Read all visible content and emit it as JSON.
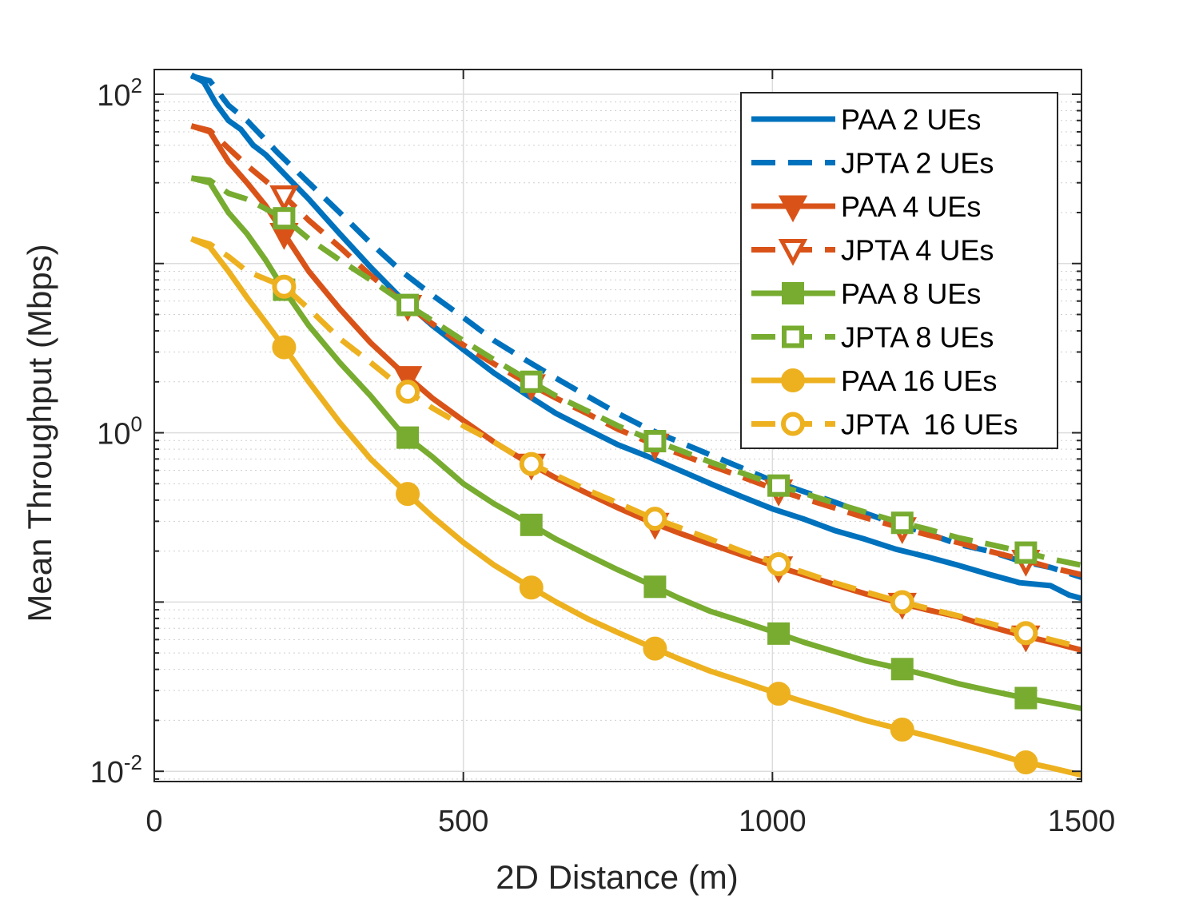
{
  "chart_data": {
    "type": "line",
    "xlabel": "2D Distance (m)",
    "ylabel": "Mean Throughput (Mbps)",
    "yscale": "log",
    "xlim": [
      0,
      1500
    ],
    "ylim": [
      0.0087,
      140
    ],
    "x_ticks": [
      0,
      500,
      1000,
      1500
    ],
    "y_ticks": [
      {
        "value": 0.01,
        "base": "10",
        "exp": "-2"
      },
      {
        "value": 1,
        "base": "10",
        "exp": "0"
      },
      {
        "value": 100,
        "base": "10",
        "exp": "2"
      }
    ],
    "grid": true,
    "legend_position": "top-right",
    "series": [
      {
        "name": "PAA 2 UEs",
        "color": "#0072BD",
        "dash": "solid",
        "marker": "none",
        "fill": "none",
        "x": [
          60,
          80,
          100,
          120,
          140,
          160,
          180,
          200,
          250,
          300,
          350,
          400,
          450,
          500,
          550,
          600,
          650,
          700,
          750,
          800,
          850,
          900,
          950,
          1000,
          1050,
          1100,
          1150,
          1200,
          1250,
          1300,
          1350,
          1400,
          1450,
          1480,
          1500
        ],
        "y": [
          130,
          118,
          88,
          70,
          62,
          50,
          44,
          37,
          24,
          15,
          9.5,
          6.2,
          4.3,
          3.1,
          2.25,
          1.7,
          1.3,
          1.05,
          0.85,
          0.72,
          0.6,
          0.5,
          0.42,
          0.355,
          0.31,
          0.265,
          0.235,
          0.205,
          0.185,
          0.165,
          0.146,
          0.13,
          0.125,
          0.11,
          0.105
        ]
      },
      {
        "name": "JPTA 2 UEs",
        "color": "#0072BD",
        "dash": "dashed",
        "marker": "none",
        "fill": "none",
        "x": [
          60,
          90,
          120,
          150,
          200,
          250,
          300,
          350,
          400,
          450,
          500,
          550,
          600,
          650,
          700,
          750,
          800,
          850,
          900,
          950,
          1000,
          1050,
          1100,
          1150,
          1200,
          1250,
          1300,
          1350,
          1400,
          1450,
          1500
        ],
        "y": [
          128,
          120,
          86,
          70,
          45,
          30,
          20,
          13.2,
          9.0,
          6.5,
          4.8,
          3.5,
          2.7,
          2.1,
          1.65,
          1.3,
          1.05,
          0.88,
          0.74,
          0.62,
          0.52,
          0.45,
          0.39,
          0.335,
          0.29,
          0.255,
          0.22,
          0.2,
          0.175,
          0.16,
          0.14
        ]
      },
      {
        "name": "PAA 4 UEs",
        "color": "#D95319",
        "dash": "solid",
        "marker": "triangle-down",
        "fill": "filled",
        "x": [
          60,
          90,
          120,
          150,
          180,
          210,
          250,
          300,
          350,
          400,
          450,
          500,
          550,
          600,
          650,
          700,
          750,
          800,
          850,
          900,
          950,
          1000,
          1050,
          1100,
          1150,
          1200,
          1250,
          1300,
          1350,
          1400,
          1450,
          1500
        ],
        "y": [
          65,
          60,
          40,
          30,
          22,
          15,
          9,
          5.4,
          3.4,
          2.3,
          1.6,
          1.18,
          0.88,
          0.68,
          0.54,
          0.44,
          0.36,
          0.3,
          0.255,
          0.22,
          0.19,
          0.165,
          0.145,
          0.127,
          0.112,
          0.1,
          0.09,
          0.082,
          0.072,
          0.064,
          0.058,
          0.052
        ]
      },
      {
        "name": "JPTA 4 UEs",
        "color": "#D95319",
        "dash": "dashed",
        "marker": "triangle-down",
        "fill": "open",
        "x": [
          60,
          90,
          120,
          150,
          210,
          250,
          300,
          350,
          400,
          450,
          500,
          550,
          600,
          650,
          700,
          750,
          800,
          850,
          900,
          950,
          1000,
          1050,
          1100,
          1150,
          1200,
          1250,
          1300,
          1350,
          1400,
          1450,
          1500
        ],
        "y": [
          65,
          61,
          48,
          38,
          25,
          18,
          12.5,
          8.5,
          6.0,
          4.4,
          3.3,
          2.55,
          2.0,
          1.6,
          1.3,
          1.05,
          0.88,
          0.75,
          0.64,
          0.55,
          0.47,
          0.41,
          0.36,
          0.315,
          0.28,
          0.25,
          0.225,
          0.2,
          0.18,
          0.16,
          0.145
        ]
      },
      {
        "name": "PAA 8 UEs",
        "color": "#77AC30",
        "dash": "solid",
        "marker": "square",
        "fill": "filled",
        "x": [
          60,
          90,
          120,
          150,
          180,
          210,
          250,
          300,
          350,
          400,
          450,
          500,
          550,
          600,
          650,
          700,
          750,
          800,
          850,
          900,
          950,
          1000,
          1050,
          1100,
          1150,
          1200,
          1250,
          1300,
          1350,
          1400,
          1450,
          1500
        ],
        "y": [
          32,
          30,
          20,
          15,
          10.5,
          7.0,
          4.3,
          2.6,
          1.65,
          1.0,
          0.72,
          0.5,
          0.38,
          0.3,
          0.235,
          0.19,
          0.155,
          0.128,
          0.105,
          0.088,
          0.077,
          0.067,
          0.058,
          0.051,
          0.045,
          0.041,
          0.037,
          0.033,
          0.03,
          0.0275,
          0.0255,
          0.0235
        ]
      },
      {
        "name": "JPTA 8 UEs",
        "color": "#77AC30",
        "dash": "dashed",
        "marker": "square",
        "fill": "open",
        "x": [
          60,
          90,
          120,
          150,
          210,
          250,
          300,
          350,
          400,
          450,
          500,
          550,
          600,
          650,
          700,
          750,
          800,
          850,
          900,
          950,
          1000,
          1050,
          1100,
          1150,
          1200,
          1250,
          1300,
          1350,
          1400,
          1450,
          1500
        ],
        "y": [
          32,
          31,
          26,
          24,
          18.5,
          14,
          10.5,
          8.0,
          6.0,
          4.6,
          3.5,
          2.7,
          2.1,
          1.65,
          1.35,
          1.1,
          0.92,
          0.79,
          0.67,
          0.58,
          0.5,
          0.44,
          0.385,
          0.34,
          0.3,
          0.27,
          0.24,
          0.22,
          0.2,
          0.18,
          0.165
        ]
      },
      {
        "name": "PAA 16 UEs",
        "color": "#EDB120",
        "dash": "solid",
        "marker": "circle",
        "fill": "filled",
        "x": [
          60,
          90,
          120,
          150,
          180,
          210,
          250,
          300,
          350,
          400,
          450,
          500,
          550,
          600,
          650,
          700,
          750,
          800,
          850,
          900,
          950,
          1000,
          1050,
          1100,
          1150,
          1200,
          1250,
          1300,
          1350,
          1400,
          1450,
          1500
        ],
        "y": [
          14,
          12.5,
          9,
          6.3,
          4.5,
          3.2,
          2.0,
          1.15,
          0.7,
          0.47,
          0.32,
          0.225,
          0.165,
          0.128,
          0.1,
          0.08,
          0.066,
          0.055,
          0.046,
          0.039,
          0.034,
          0.0295,
          0.0258,
          0.0228,
          0.02,
          0.018,
          0.0162,
          0.0145,
          0.013,
          0.0115,
          0.0105,
          0.0095
        ]
      },
      {
        "name": "JPTA  16 UEs",
        "color": "#EDB120",
        "dash": "dashed",
        "marker": "circle",
        "fill": "open",
        "x": [
          60,
          90,
          120,
          150,
          210,
          250,
          300,
          350,
          400,
          450,
          500,
          550,
          600,
          650,
          700,
          750,
          800,
          850,
          900,
          950,
          1000,
          1050,
          1100,
          1150,
          1200,
          1250,
          1300,
          1350,
          1400,
          1450,
          1500
        ],
        "y": [
          14,
          13,
          11,
          9,
          7.3,
          5.4,
          3.6,
          2.6,
          1.85,
          1.4,
          1.1,
          0.88,
          0.68,
          0.56,
          0.46,
          0.385,
          0.32,
          0.275,
          0.235,
          0.2,
          0.172,
          0.15,
          0.13,
          0.115,
          0.102,
          0.092,
          0.083,
          0.075,
          0.067,
          0.06,
          0.054
        ]
      }
    ],
    "marker_x": [
      210,
      410,
      610,
      810,
      1010,
      1210,
      1410
    ]
  }
}
